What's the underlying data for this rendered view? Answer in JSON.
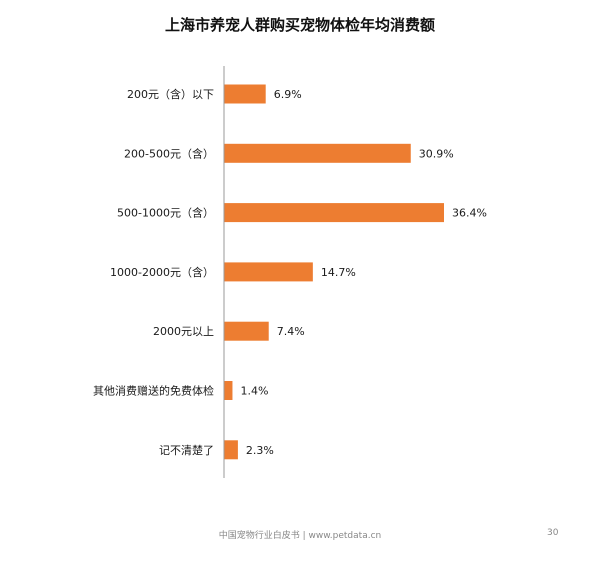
{
  "chart_data": {
    "type": "bar",
    "orientation": "horizontal",
    "title": "上海市养宠人群购买宠物体检年均消费额",
    "categories": [
      "200元（含）以下",
      "200-500元（含）",
      "500-1000元（含）",
      "1000-2000元（含）",
      "2000元以上",
      "其他消费赠送的免费体检",
      "记不清楚了"
    ],
    "values": [
      6.9,
      30.9,
      36.4,
      14.7,
      7.4,
      1.4,
      2.3
    ],
    "value_labels": [
      "6.9%",
      "30.9%",
      "36.4%",
      "14.7%",
      "7.4%",
      "1.4%",
      "2.3%"
    ],
    "unit": "%",
    "xlim": [
      0,
      40
    ],
    "grid": false,
    "legend": "none",
    "bar_color": "#ED7D31"
  },
  "footer": {
    "text": "中国宠物行业白皮书 | www.petdata.cn",
    "page_number": "30"
  }
}
